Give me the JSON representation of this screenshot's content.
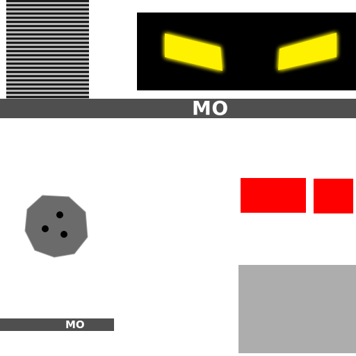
{
  "banner": {
    "label": "MO"
  },
  "small_banner": {
    "label": "MO"
  },
  "colors": {
    "background": "#ffffff",
    "banner": "#4f4f4f",
    "eye_glow": "#ffff00",
    "eye_core": "#ffee00",
    "panel": "#000000",
    "indicator": "#ff0000",
    "block": "#adadad",
    "knob": "#6b6b6b",
    "knob_holes": "#000000"
  },
  "icons": {
    "eyes": "glowing-eyes-icon",
    "knob": "button-knob-icon",
    "vent": "striped-vent-icon"
  }
}
